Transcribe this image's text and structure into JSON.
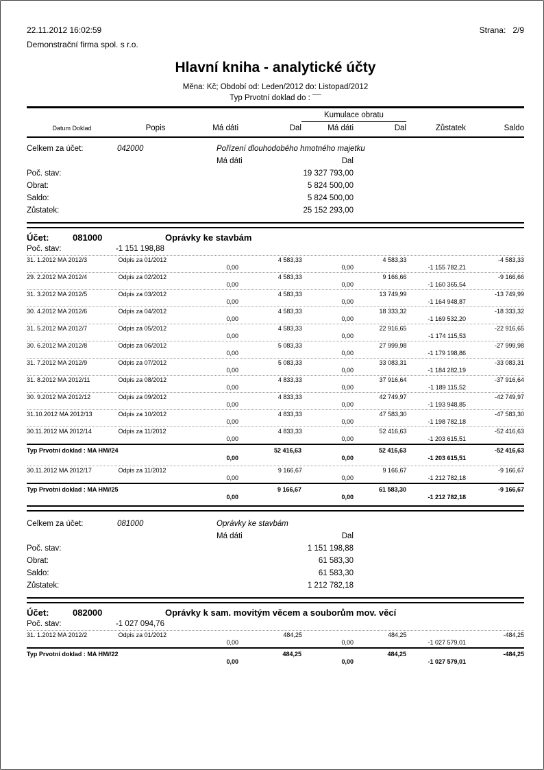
{
  "header": {
    "printed_at": "22.11.2012 16:02:59",
    "company": "Demonstrační firma spol. s r.o.",
    "page_label": "Strana:",
    "page_value": "2/9",
    "title": "Hlavní kniha - analytické účty",
    "subtitle_period": "Měna: Kč; Období od: Leden/2012 do: Listopad/2012",
    "subtitle_filter": "Typ Prvotní doklad do : ¯¯"
  },
  "table_head": {
    "kumulace": "Kumulace obratu",
    "cols": [
      "Datum Doklad",
      "Popis",
      "Má dáti",
      "Dal",
      "Má dáti",
      "Dal",
      "Zůstatek",
      "Saldo"
    ]
  },
  "blocks": [
    {
      "type": "summary",
      "label": "Celkem za účet:",
      "account": "042000",
      "account_name": "Pořízení dlouhodobého hmotného majetku",
      "debit_label": "Má dáti",
      "credit_label": "Dal",
      "rows": [
        {
          "label": "Poč. stav:",
          "value": "19 327 793,00"
        },
        {
          "label": "Obrat:",
          "value": "5 824 500,00"
        },
        {
          "label": "Saldo:",
          "value": "5 824 500,00"
        },
        {
          "label": "Zůstatek:",
          "value": "25 152 293,00"
        }
      ]
    },
    {
      "type": "account",
      "label": "Účet:",
      "account": "081000",
      "account_name": "Oprávky ke stavbám",
      "opening_label": "Poč. stav:",
      "opening": "-1 151 198,88",
      "groups": [
        {
          "rows": [
            {
              "datum": "31. 1.2012 MA 2012/3",
              "popis": "Odpis za 01/2012",
              "dal": "4 583,33",
              "k_dal": "4 583,33",
              "saldo": "-4 583,33",
              "ma_dati": "0,00",
              "k_ma_dati": "0,00",
              "zustatek": "-1 155 782,21"
            },
            {
              "datum": "29. 2.2012 MA 2012/4",
              "popis": "Odpis za 02/2012",
              "dal": "4 583,33",
              "k_dal": "9 166,66",
              "saldo": "-9 166,66",
              "ma_dati": "0,00",
              "k_ma_dati": "0,00",
              "zustatek": "-1 160 365,54"
            },
            {
              "datum": "31. 3.2012 MA 2012/5",
              "popis": "Odpis za 03/2012",
              "dal": "4 583,33",
              "k_dal": "13 749,99",
              "saldo": "-13 749,99",
              "ma_dati": "0,00",
              "k_ma_dati": "0,00",
              "zustatek": "-1 164 948,87"
            },
            {
              "datum": "30. 4.2012 MA 2012/6",
              "popis": "Odpis za 04/2012",
              "dal": "4 583,33",
              "k_dal": "18 333,32",
              "saldo": "-18 333,32",
              "ma_dati": "0,00",
              "k_ma_dati": "0,00",
              "zustatek": "-1 169 532,20"
            },
            {
              "datum": "31. 5.2012 MA 2012/7",
              "popis": "Odpis za 05/2012",
              "dal": "4 583,33",
              "k_dal": "22 916,65",
              "saldo": "-22 916,65",
              "ma_dati": "0,00",
              "k_ma_dati": "0,00",
              "zustatek": "-1 174 115,53"
            },
            {
              "datum": "30. 6.2012 MA 2012/8",
              "popis": "Odpis za 06/2012",
              "dal": "5 083,33",
              "k_dal": "27 999,98",
              "saldo": "-27 999,98",
              "ma_dati": "0,00",
              "k_ma_dati": "0,00",
              "zustatek": "-1 179 198,86"
            },
            {
              "datum": "31. 7.2012 MA 2012/9",
              "popis": "Odpis za 07/2012",
              "dal": "5 083,33",
              "k_dal": "33 083,31",
              "saldo": "-33 083,31",
              "ma_dati": "0,00",
              "k_ma_dati": "0,00",
              "zustatek": "-1 184 282,19"
            },
            {
              "datum": "31. 8.2012 MA 2012/11",
              "popis": "Odpis za 08/2012",
              "dal": "4 833,33",
              "k_dal": "37 916,64",
              "saldo": "-37 916,64",
              "ma_dati": "0,00",
              "k_ma_dati": "0,00",
              "zustatek": "-1 189 115,52"
            },
            {
              "datum": "30. 9.2012 MA 2012/12",
              "popis": "Odpis za 09/2012",
              "dal": "4 833,33",
              "k_dal": "42 749,97",
              "saldo": "-42 749,97",
              "ma_dati": "0,00",
              "k_ma_dati": "0,00",
              "zustatek": "-1 193 948,85"
            },
            {
              "datum": "31.10.2012 MA 2012/13",
              "popis": "Odpis za 10/2012",
              "dal": "4 833,33",
              "k_dal": "47 583,30",
              "saldo": "-47 583,30",
              "ma_dati": "0,00",
              "k_ma_dati": "0,00",
              "zustatek": "-1 198 782,18"
            },
            {
              "datum": "30.11.2012 MA 2012/14",
              "popis": "Odpis za 11/2012",
              "dal": "4 833,33",
              "k_dal": "52 416,63",
              "saldo": "-52 416,63",
              "ma_dati": "0,00",
              "k_ma_dati": "0,00",
              "zustatek": "-1 203 615,51"
            }
          ],
          "total": {
            "label": "Typ Prvotní doklad : MA HM//24",
            "dal": "52 416,63",
            "k_dal": "52 416,63",
            "saldo": "-52 416,63",
            "ma_dati": "0,00",
            "k_ma_dati": "0,00",
            "zustatek": "-1 203 615,51"
          }
        },
        {
          "rows": [
            {
              "datum": "30.11.2012 MA 2012/17",
              "popis": "Odpis za 11/2012",
              "dal": "9 166,67",
              "k_dal": "9 166,67",
              "saldo": "-9 166,67",
              "ma_dati": "0,00",
              "k_ma_dati": "0,00",
              "zustatek": "-1 212 782,18"
            }
          ],
          "total": {
            "label": "Typ Prvotní doklad : MA HM//25",
            "dal": "9 166,67",
            "k_dal": "61 583,30",
            "saldo": "-9 166,67",
            "ma_dati": "0,00",
            "k_ma_dati": "0,00",
            "zustatek": "-1 212 782,18"
          }
        }
      ]
    },
    {
      "type": "summary",
      "label": "Celkem za účet:",
      "account": "081000",
      "account_name": "Oprávky ke stavbám",
      "debit_label": "Má dáti",
      "credit_label": "Dal",
      "rows": [
        {
          "label": "Poč. stav:",
          "value": "1 151 198,88"
        },
        {
          "label": "Obrat:",
          "value": "61 583,30"
        },
        {
          "label": "Saldo:",
          "value": "61 583,30"
        },
        {
          "label": "Zůstatek:",
          "value": "1 212 782,18"
        }
      ]
    },
    {
      "type": "account",
      "label": "Účet:",
      "account": "082000",
      "account_name": "Oprávky k sam. movitým věcem a souborům mov. věcí",
      "opening_label": "Poč. stav:",
      "opening": "-1 027 094,76",
      "groups": [
        {
          "rows": [
            {
              "datum": "31. 1.2012 MA 2012/2",
              "popis": "Odpis za 01/2012",
              "dal": "484,25",
              "k_dal": "484,25",
              "saldo": "-484,25",
              "ma_dati": "0,00",
              "k_ma_dati": "0,00",
              "zustatek": "-1 027 579,01"
            }
          ],
          "total": {
            "label": "Typ Prvotní doklad : MA HM//22",
            "dal": "484,25",
            "k_dal": "484,25",
            "saldo": "-484,25",
            "ma_dati": "0,00",
            "k_ma_dati": "0,00",
            "zustatek": "-1 027 579,01"
          }
        }
      ]
    }
  ]
}
